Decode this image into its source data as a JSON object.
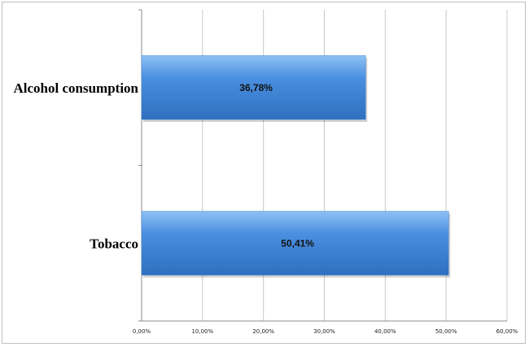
{
  "chart_data": {
    "type": "bar",
    "orientation": "horizontal",
    "categories": [
      "Alcohol consumption",
      "Tobacco"
    ],
    "values": [
      36.78,
      50.41
    ],
    "value_labels": [
      "36,78%",
      "50,41%"
    ],
    "xlim": [
      0,
      60
    ],
    "x_ticks": [
      0,
      10,
      20,
      30,
      40,
      50,
      60
    ],
    "x_tick_labels": [
      "0,00%",
      "10,00%",
      "20,00%",
      "30,00%",
      "40,00%",
      "50,00%",
      "60,00%"
    ],
    "title": "",
    "xlabel": "",
    "ylabel": "",
    "grid": "vertical",
    "legend": "none",
    "bar_color": "#4a8fe0",
    "bar_color_light": "#8ec1f5",
    "bar_color_dark": "#2f6fbf"
  }
}
